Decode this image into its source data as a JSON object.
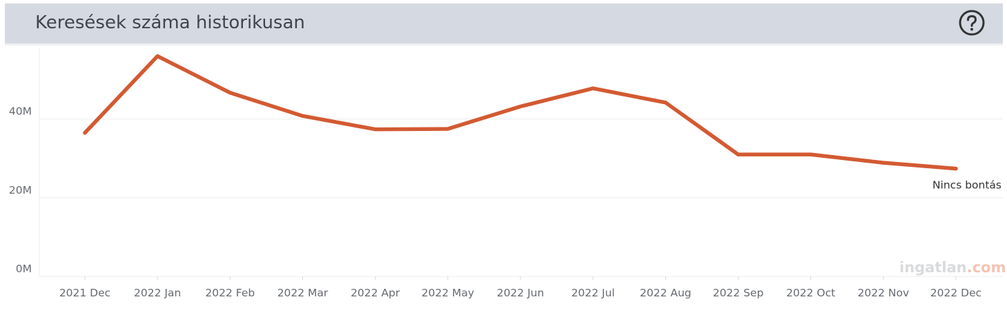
{
  "header": {
    "title": "Keresések száma historikusan",
    "help_icon": "question-circle-icon"
  },
  "watermark": {
    "brand": "ingatlan",
    "tld": ".com"
  },
  "colors": {
    "line": "#d35a32",
    "header_bg": "#d5dae2",
    "grid": "#ececec"
  },
  "chart_data": {
    "type": "line",
    "title": "Keresések száma historikusan",
    "xlabel": "",
    "ylabel": "",
    "categories": [
      "2021 Dec",
      "2022 Jan",
      "2022 Feb",
      "2022 Mar",
      "2022 Apr",
      "2022 May",
      "2022 Jun",
      "2022 Jul",
      "2022 Aug",
      "2022 Sep",
      "2022 Oct",
      "2022 Nov",
      "2022 Dec"
    ],
    "y_ticks": [
      0,
      20000000,
      40000000
    ],
    "y_tick_labels": [
      "0M",
      "20M",
      "40M"
    ],
    "ylim": [
      0,
      58000000
    ],
    "grid": true,
    "series": [
      {
        "name": "Nincs bontás",
        "values": [
          36500000,
          56000000,
          46700000,
          40800000,
          37400000,
          37500000,
          43200000,
          47800000,
          44200000,
          31000000,
          31000000,
          28900000,
          27400000
        ]
      }
    ]
  }
}
